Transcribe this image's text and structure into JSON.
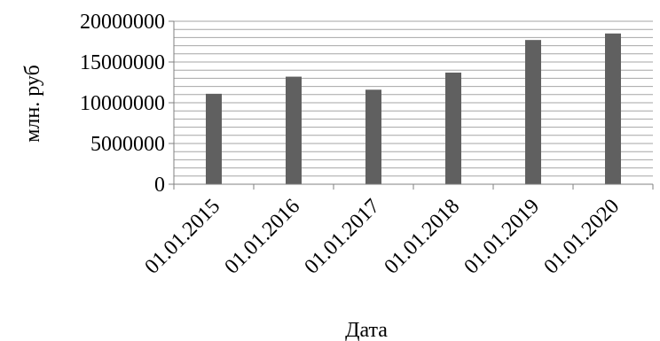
{
  "chart_data": {
    "type": "bar",
    "title": "",
    "xlabel": "Дата",
    "ylabel": "млн. руб",
    "categories": [
      "01.01.2015",
      "01.01.2016",
      "01.01.2017",
      "01.01.2018",
      "01.01.2019",
      "01.01.2020"
    ],
    "values": [
      11100000,
      13200000,
      11600000,
      13700000,
      17700000,
      18500000
    ],
    "ylim": [
      0,
      20000000
    ],
    "yticks": [
      0,
      5000000,
      10000000,
      15000000,
      20000000
    ],
    "minor_step": 1000000,
    "grid": true,
    "legend": "none",
    "colors": {
      "bar": "#606060",
      "grid": "#a6a6a6",
      "axis": "#808080"
    }
  }
}
